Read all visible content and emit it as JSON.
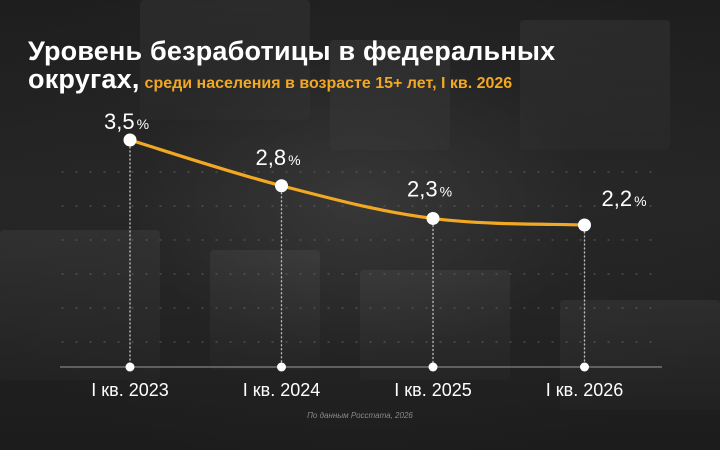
{
  "title": {
    "line1": "Уровень безработицы в федеральных",
    "line2": "округах,",
    "subtitle": "среди населения в возрасте 15+ лет, I кв. 2026"
  },
  "source": "По данным Росстата, 2026",
  "colors": {
    "line": "#f2a823",
    "subtitle": "#f2a823",
    "marker": "#ffffff",
    "text": "#ffffff",
    "grid": "#6a6a6a"
  },
  "chart_data": {
    "type": "line",
    "categories": [
      "I кв. 2023",
      "I кв. 2024",
      "I кв. 2025",
      "I кв. 2026"
    ],
    "values": [
      3.5,
      2.8,
      2.3,
      2.2
    ],
    "value_labels": [
      "3,5",
      "2,8",
      "2,3",
      "2,2"
    ],
    "unit": "%",
    "title": "Уровень безработицы в федеральных округах,",
    "subtitle": "среди населения в возрасте 15+ лет, I кв. 2026",
    "xlabel": "",
    "ylabel": "",
    "ylim": [
      0,
      3.9
    ],
    "grid": true,
    "legend": "none"
  }
}
